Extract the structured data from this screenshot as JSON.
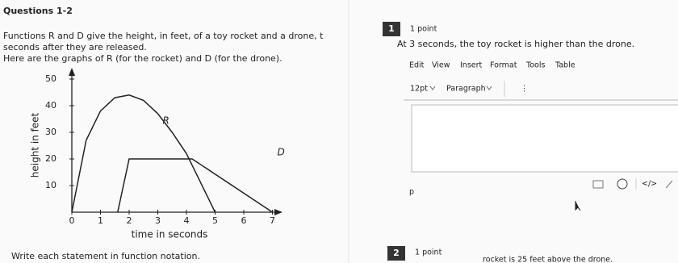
{
  "header": {
    "title": "Questions 1-2"
  },
  "intro": [
    "Functions R and D give the height, in feet, of a toy rocket and a drone, t",
    "seconds after they are released.",
    "Here are the graphs of R (for the rocket) and D (for the drone)."
  ],
  "graph": {
    "x_label": "time in seconds",
    "y_label": "height in feet",
    "xlim": [
      0,
      7.3
    ],
    "ylim": [
      0,
      52
    ],
    "xticks": [
      0,
      1,
      2,
      3,
      4,
      5,
      6,
      7
    ],
    "yticks": [
      10,
      20,
      30,
      40,
      50
    ],
    "series": [
      {
        "name": "R",
        "color": "#222222",
        "t": [
          0,
          0.5,
          1,
          1.5,
          2,
          2.5,
          3,
          3.5,
          4,
          4.5,
          5
        ],
        "values": [
          0,
          27,
          38,
          43,
          44,
          42,
          37,
          30,
          22,
          11,
          0
        ]
      },
      {
        "name": "D",
        "color": "#222222",
        "t": [
          1.6,
          2,
          4.2,
          7
        ],
        "values": [
          0,
          20,
          20,
          0
        ]
      }
    ]
  },
  "instruction": "Write each statement in function notation.",
  "questions": [
    {
      "number": "1",
      "points": "1 point",
      "statement": "At 3 seconds, the toy rocket is higher than the drone."
    },
    {
      "number": "2",
      "points": "1 point",
      "statement": "rocket is 25 feet above the drone."
    }
  ],
  "editor": {
    "menu": [
      "Edit",
      "View",
      "Insert",
      "Format",
      "Tools",
      "Table"
    ],
    "font_size": "12pt",
    "block_format": "Paragraph",
    "status": "p"
  }
}
